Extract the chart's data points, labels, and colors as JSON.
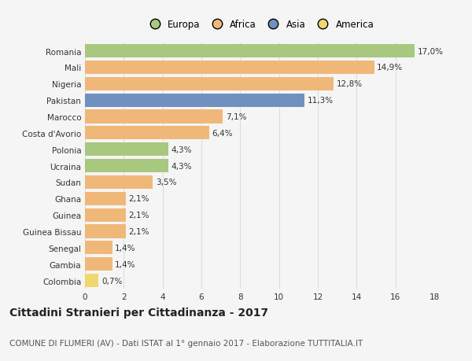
{
  "categories": [
    "Romania",
    "Mali",
    "Nigeria",
    "Pakistan",
    "Marocco",
    "Costa d'Avorio",
    "Polonia",
    "Ucraina",
    "Sudan",
    "Ghana",
    "Guinea",
    "Guinea Bissau",
    "Senegal",
    "Gambia",
    "Colombia"
  ],
  "values": [
    17.0,
    14.9,
    12.8,
    11.3,
    7.1,
    6.4,
    4.3,
    4.3,
    3.5,
    2.1,
    2.1,
    2.1,
    1.4,
    1.4,
    0.7
  ],
  "labels": [
    "17,0%",
    "14,9%",
    "12,8%",
    "11,3%",
    "7,1%",
    "6,4%",
    "4,3%",
    "4,3%",
    "3,5%",
    "2,1%",
    "2,1%",
    "2,1%",
    "1,4%",
    "1,4%",
    "0,7%"
  ],
  "colors": [
    "#a8c880",
    "#f0b878",
    "#f0b878",
    "#7090c0",
    "#f0b878",
    "#f0b878",
    "#a8c880",
    "#a8c880",
    "#f0b878",
    "#f0b878",
    "#f0b878",
    "#f0b878",
    "#f0b878",
    "#f0b878",
    "#f0d870"
  ],
  "legend_labels": [
    "Europa",
    "Africa",
    "Asia",
    "America"
  ],
  "legend_colors": [
    "#a8c880",
    "#f0b878",
    "#7090c0",
    "#f0d870"
  ],
  "title": "Cittadini Stranieri per Cittadinanza - 2017",
  "subtitle": "COMUNE DI FLUMERI (AV) - Dati ISTAT al 1° gennaio 2017 - Elaborazione TUTTITALIA.IT",
  "xlim": [
    0,
    18
  ],
  "xticks": [
    0,
    2,
    4,
    6,
    8,
    10,
    12,
    14,
    16,
    18
  ],
  "background_color": "#f5f5f5",
  "bar_height": 0.82,
  "grid_color": "#dddddd",
  "title_fontsize": 10,
  "subtitle_fontsize": 7.5,
  "label_fontsize": 7.5,
  "tick_fontsize": 7.5,
  "legend_fontsize": 8.5
}
